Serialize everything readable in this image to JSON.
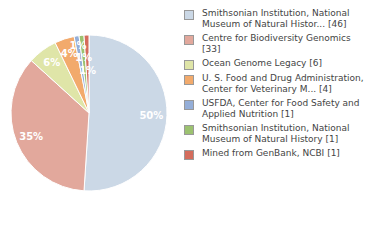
{
  "chart_data": {
    "type": "pie",
    "categories": [
      "Smithsonian Institution, National Museum of Natural Histor... [46]",
      "Centre for Biodiversity Genomics [33]",
      "Ocean Genome Legacy [6]",
      "U. S. Food and Drug Administration, Center for Veterinary M... [4]",
      "USFDA, Center for Food Safety and Applied Nutrition [1]",
      "Smithsonian Institution, National Museum of Natural History [1]",
      "Mined from GenBank, NCBI [1]"
    ],
    "values": [
      50,
      35,
      6,
      4,
      1,
      1,
      1
    ],
    "value_labels": [
      "50%",
      "35%",
      "6%",
      "4%",
      "1%",
      "1%",
      "1%"
    ],
    "data_labels": true,
    "colors": [
      "#cbd8e6",
      "#e2a89c",
      "#dfe5a8",
      "#f2aa6c",
      "#94aed8",
      "#9cc270",
      "#d46c5c"
    ],
    "legend": "right"
  }
}
